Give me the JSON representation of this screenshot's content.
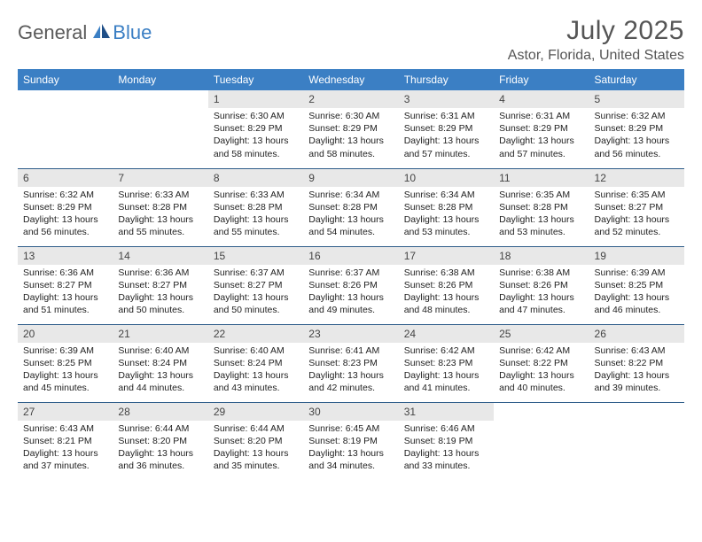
{
  "brand": {
    "part1": "General",
    "part2": "Blue"
  },
  "title": "July 2025",
  "location": "Astor, Florida, United States",
  "colors": {
    "header_bg": "#3b7fc4",
    "header_fg": "#ffffff",
    "daynum_bg": "#e8e8e8",
    "row_border": "#2f5d8a",
    "logo_gray": "#5a5a5a",
    "logo_blue": "#3b7fc4",
    "page_bg": "#ffffff"
  },
  "weekdays": [
    "Sunday",
    "Monday",
    "Tuesday",
    "Wednesday",
    "Thursday",
    "Friday",
    "Saturday"
  ],
  "weeks": [
    [
      null,
      null,
      {
        "n": "1",
        "sr": "6:30 AM",
        "ss": "8:29 PM",
        "dl": "13 hours and 58 minutes."
      },
      {
        "n": "2",
        "sr": "6:30 AM",
        "ss": "8:29 PM",
        "dl": "13 hours and 58 minutes."
      },
      {
        "n": "3",
        "sr": "6:31 AM",
        "ss": "8:29 PM",
        "dl": "13 hours and 57 minutes."
      },
      {
        "n": "4",
        "sr": "6:31 AM",
        "ss": "8:29 PM",
        "dl": "13 hours and 57 minutes."
      },
      {
        "n": "5",
        "sr": "6:32 AM",
        "ss": "8:29 PM",
        "dl": "13 hours and 56 minutes."
      }
    ],
    [
      {
        "n": "6",
        "sr": "6:32 AM",
        "ss": "8:29 PM",
        "dl": "13 hours and 56 minutes."
      },
      {
        "n": "7",
        "sr": "6:33 AM",
        "ss": "8:28 PM",
        "dl": "13 hours and 55 minutes."
      },
      {
        "n": "8",
        "sr": "6:33 AM",
        "ss": "8:28 PM",
        "dl": "13 hours and 55 minutes."
      },
      {
        "n": "9",
        "sr": "6:34 AM",
        "ss": "8:28 PM",
        "dl": "13 hours and 54 minutes."
      },
      {
        "n": "10",
        "sr": "6:34 AM",
        "ss": "8:28 PM",
        "dl": "13 hours and 53 minutes."
      },
      {
        "n": "11",
        "sr": "6:35 AM",
        "ss": "8:28 PM",
        "dl": "13 hours and 53 minutes."
      },
      {
        "n": "12",
        "sr": "6:35 AM",
        "ss": "8:27 PM",
        "dl": "13 hours and 52 minutes."
      }
    ],
    [
      {
        "n": "13",
        "sr": "6:36 AM",
        "ss": "8:27 PM",
        "dl": "13 hours and 51 minutes."
      },
      {
        "n": "14",
        "sr": "6:36 AM",
        "ss": "8:27 PM",
        "dl": "13 hours and 50 minutes."
      },
      {
        "n": "15",
        "sr": "6:37 AM",
        "ss": "8:27 PM",
        "dl": "13 hours and 50 minutes."
      },
      {
        "n": "16",
        "sr": "6:37 AM",
        "ss": "8:26 PM",
        "dl": "13 hours and 49 minutes."
      },
      {
        "n": "17",
        "sr": "6:38 AM",
        "ss": "8:26 PM",
        "dl": "13 hours and 48 minutes."
      },
      {
        "n": "18",
        "sr": "6:38 AM",
        "ss": "8:26 PM",
        "dl": "13 hours and 47 minutes."
      },
      {
        "n": "19",
        "sr": "6:39 AM",
        "ss": "8:25 PM",
        "dl": "13 hours and 46 minutes."
      }
    ],
    [
      {
        "n": "20",
        "sr": "6:39 AM",
        "ss": "8:25 PM",
        "dl": "13 hours and 45 minutes."
      },
      {
        "n": "21",
        "sr": "6:40 AM",
        "ss": "8:24 PM",
        "dl": "13 hours and 44 minutes."
      },
      {
        "n": "22",
        "sr": "6:40 AM",
        "ss": "8:24 PM",
        "dl": "13 hours and 43 minutes."
      },
      {
        "n": "23",
        "sr": "6:41 AM",
        "ss": "8:23 PM",
        "dl": "13 hours and 42 minutes."
      },
      {
        "n": "24",
        "sr": "6:42 AM",
        "ss": "8:23 PM",
        "dl": "13 hours and 41 minutes."
      },
      {
        "n": "25",
        "sr": "6:42 AM",
        "ss": "8:22 PM",
        "dl": "13 hours and 40 minutes."
      },
      {
        "n": "26",
        "sr": "6:43 AM",
        "ss": "8:22 PM",
        "dl": "13 hours and 39 minutes."
      }
    ],
    [
      {
        "n": "27",
        "sr": "6:43 AM",
        "ss": "8:21 PM",
        "dl": "13 hours and 37 minutes."
      },
      {
        "n": "28",
        "sr": "6:44 AM",
        "ss": "8:20 PM",
        "dl": "13 hours and 36 minutes."
      },
      {
        "n": "29",
        "sr": "6:44 AM",
        "ss": "8:20 PM",
        "dl": "13 hours and 35 minutes."
      },
      {
        "n": "30",
        "sr": "6:45 AM",
        "ss": "8:19 PM",
        "dl": "13 hours and 34 minutes."
      },
      {
        "n": "31",
        "sr": "6:46 AM",
        "ss": "8:19 PM",
        "dl": "13 hours and 33 minutes."
      },
      null,
      null
    ]
  ],
  "labels": {
    "sunrise": "Sunrise:",
    "sunset": "Sunset:",
    "daylight": "Daylight:"
  }
}
